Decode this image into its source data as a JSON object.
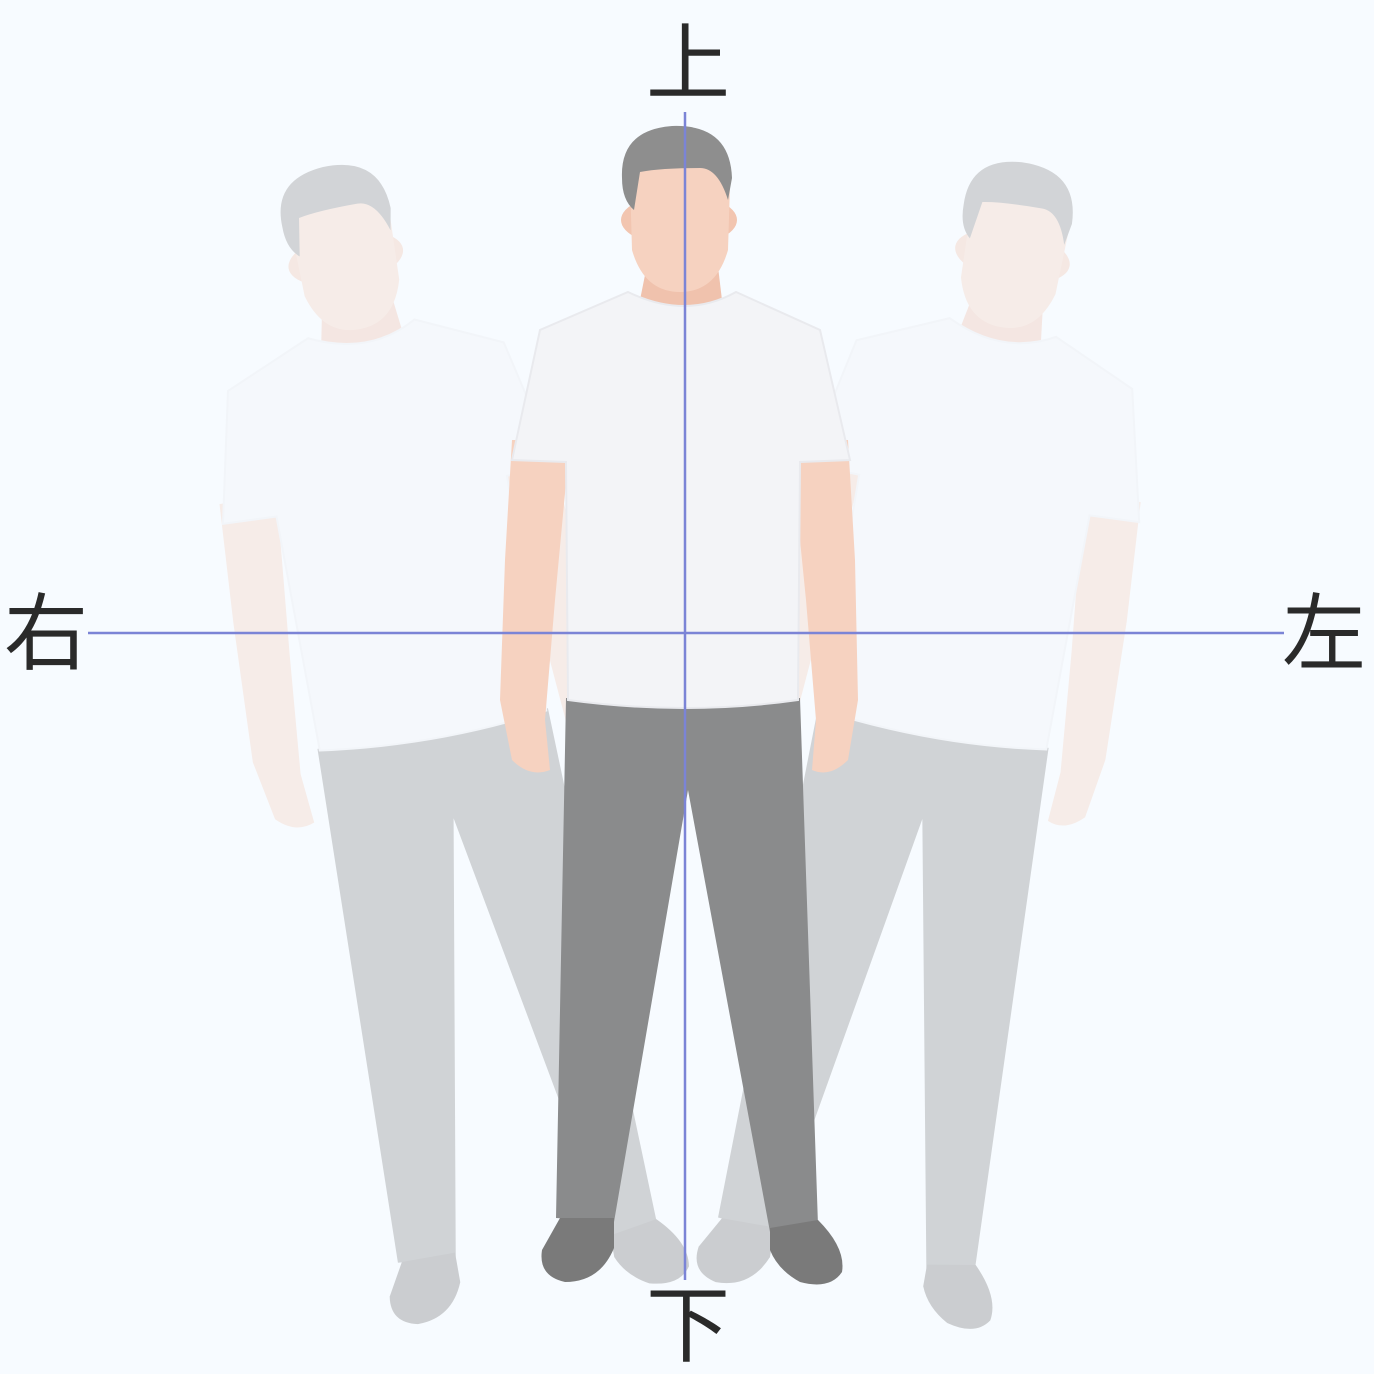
{
  "labels": {
    "up": "上",
    "down": "下",
    "right": "右",
    "left": "左"
  },
  "colors": {
    "background": "#f7fbff",
    "axis": "#7b84d6",
    "skin": "#f6d2c0",
    "hair": "#8e8e8e",
    "shirt": "#f3f4f7",
    "pants": "#8a8b8c",
    "shoes": "#7a7a7a"
  },
  "icons": {
    "figure": "standing-person-icon",
    "ghost_figures": [
      "head-tilt-right-ghost-icon",
      "head-tilt-left-ghost-icon"
    ]
  }
}
